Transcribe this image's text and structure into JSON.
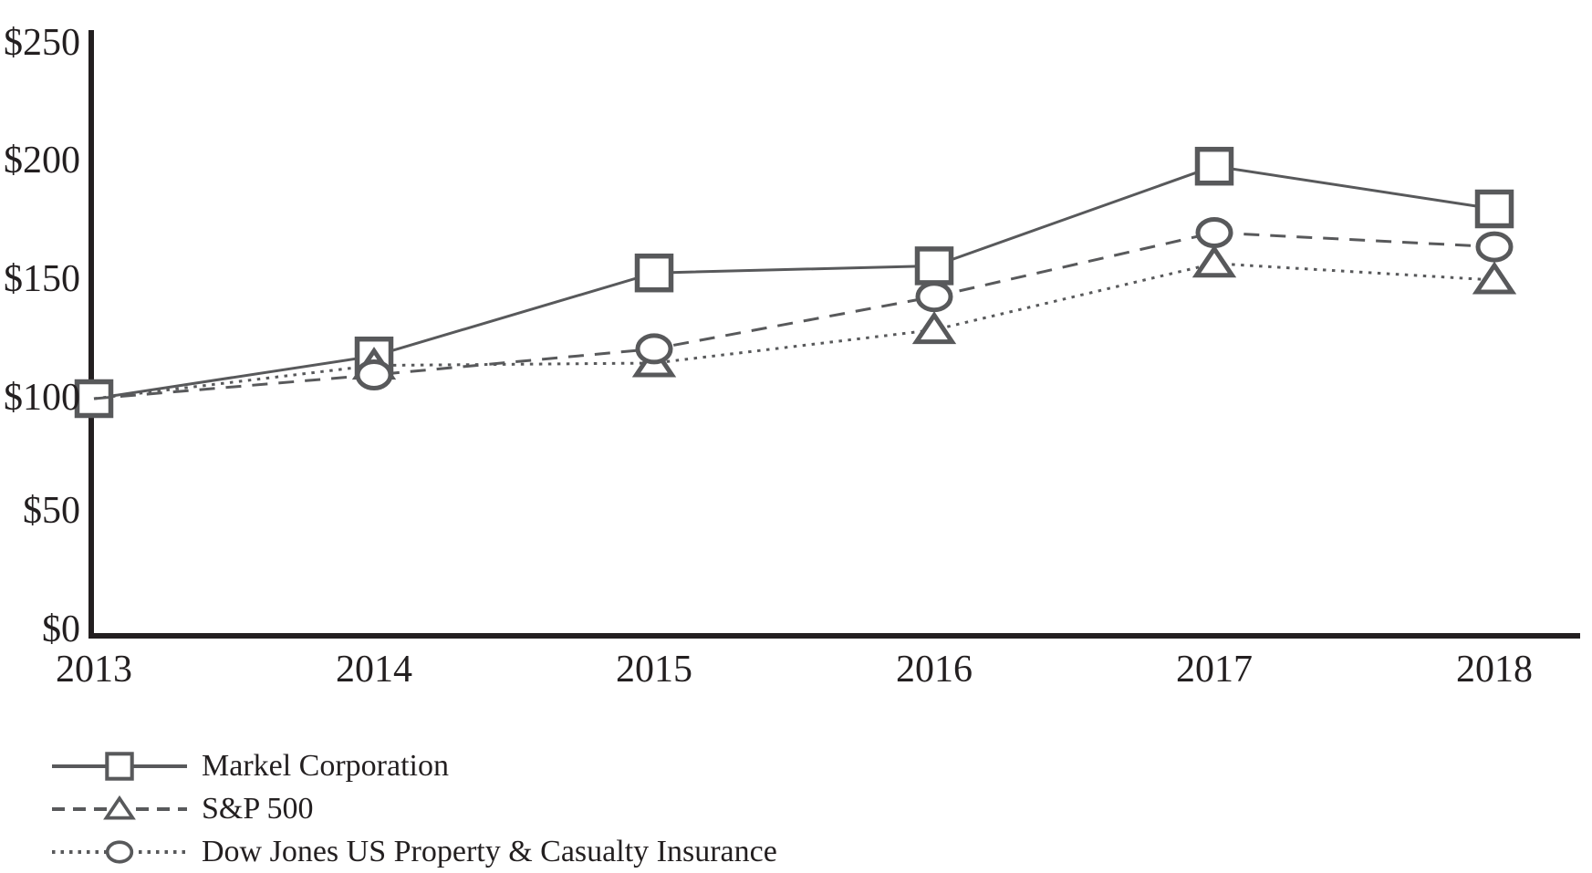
{
  "chart_data": {
    "type": "line",
    "title": "",
    "x_labels": [
      "2013",
      "2014",
      "2015",
      "2016",
      "2017",
      "2018"
    ],
    "ytick_labels": [
      "$250",
      "$200",
      "$150",
      "$100",
      "$50",
      "$0"
    ],
    "ytick_values": [
      250,
      200,
      150,
      100,
      50,
      0
    ],
    "ylim": [
      0,
      250
    ],
    "grid": false,
    "legend_position": "bottom-left",
    "series": [
      {
        "name": "Markel Corporation",
        "marker": "square",
        "line_style_plot": "solid",
        "line_style_legend": "solid",
        "values": [
          100,
          118,
          153,
          156,
          198,
          180
        ]
      },
      {
        "name": "S&P 500",
        "marker": "triangle",
        "line_style_plot": "dotted",
        "line_style_legend": "dashed",
        "values": [
          100,
          114,
          115,
          129,
          157,
          150
        ]
      },
      {
        "name": "Dow Jones US Property & Casualty Insurance",
        "marker": "circle",
        "line_style_plot": "dashed",
        "line_style_legend": "dotted",
        "values": [
          100,
          110,
          121,
          143,
          170,
          164
        ]
      }
    ],
    "colors": {
      "series": "#58595B",
      "axis": "#231F20",
      "text": "#231F20",
      "background": "#FFFFFF"
    }
  }
}
